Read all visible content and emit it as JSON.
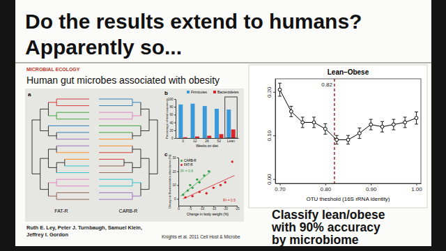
{
  "slide": {
    "title": [
      "Do the results extend to humans?",
      "Apparently so..."
    ],
    "figure": {
      "section": "MICROBIAL ECOLOGY",
      "heading": "Human gut microbes associated with obesity",
      "panels": [
        "a",
        "b",
        "c"
      ],
      "trees": [
        "FAT-R",
        "CARB-R"
      ],
      "authors": [
        "Ruth E. Ley, Peter J. Turnbaugh, Samuel Klein,",
        "Jeffrey I. Gordon"
      ]
    },
    "conclusion": [
      "Classify lean/obese",
      "with 90% accuracy",
      "by microbiome"
    ],
    "citation": "Knights et al. 2011 Cell Host & Microbe"
  },
  "chart_data": [
    {
      "type": "bar",
      "categories": [
        "0",
        "12",
        "26",
        "52",
        "Lean"
      ],
      "series": [
        {
          "name": "Firmicutes",
          "color": "#3a9ad9",
          "values": [
            86,
            88,
            82,
            75,
            73
          ]
        },
        {
          "name": "Bacteroidetes",
          "color": "#d7262b",
          "values": [
            2,
            4,
            6,
            10,
            22
          ]
        }
      ],
      "xlabel": "Weeks on diet",
      "ylabel": "Percentage of total sequences",
      "ylim": [
        0,
        100
      ],
      "yticks": [
        0,
        20,
        40,
        60,
        80,
        100
      ],
      "legend": "top"
    },
    {
      "type": "scatter",
      "series": [
        {
          "name": "CARB-R",
          "color": "#3aa04a",
          "marker": "circle",
          "x": [
            -2,
            -4,
            -5,
            -6,
            -8,
            -9,
            -11,
            -13
          ],
          "values": [
            3,
            6,
            10,
            8,
            14,
            12,
            17,
            20
          ],
          "fit": {
            "x": [
              -1,
              -14
            ],
            "values": [
              2,
              20
            ]
          },
          "annotation": "R² = 0.8"
        },
        {
          "name": "FAT-R",
          "color": "#d7262b",
          "marker": "circle",
          "x": [
            -3,
            -6,
            -9,
            -12,
            -15,
            -18,
            -20,
            -23
          ],
          "values": [
            1,
            2,
            5,
            4,
            8,
            10,
            12,
            27
          ],
          "fit": {
            "x": [
              -2,
              -24
            ],
            "values": [
              0,
              17
            ]
          },
          "annotation": "R² = 0.5"
        }
      ],
      "xlabel": "Change in body weight (%)",
      "ylabel": "Change in Bacteroidetes abundance (%)",
      "xlim": [
        0,
        -25
      ],
      "xticks": [
        0,
        -5,
        -10,
        -15,
        -20,
        -25
      ],
      "ylim": [
        -5,
        30
      ],
      "yticks": [
        0,
        10,
        20,
        30
      ],
      "legend": "top-left"
    },
    {
      "type": "line",
      "title": "Lean–Obese",
      "x": [
        0.7,
        0.725,
        0.75,
        0.775,
        0.8,
        0.825,
        0.85,
        0.875,
        0.9,
        0.925,
        0.95,
        0.975,
        1.0
      ],
      "values": [
        0.205,
        0.155,
        0.13,
        0.13,
        0.115,
        0.09,
        0.09,
        0.105,
        0.125,
        0.12,
        0.125,
        0.13,
        0.14
      ],
      "errors": [
        0.015,
        0.012,
        0.012,
        0.012,
        0.012,
        0.01,
        0.01,
        0.012,
        0.012,
        0.012,
        0.012,
        0.012,
        0.014
      ],
      "color": "#000000",
      "marker": "circle",
      "line_style": "solid",
      "xlabel": "OTU theshold (16S rRNA identity)",
      "xlim": [
        0.69,
        1.01
      ],
      "xticks": [
        {
          "value": 0.7,
          "label": "0.70"
        },
        {
          "value": 0.8,
          "label": "0.80"
        },
        {
          "value": 0.9,
          "label": "0.90"
        },
        {
          "value": 1.0,
          "label": "1.00"
        }
      ],
      "ylim": [
        -0.01,
        0.23
      ],
      "yticks": [
        {
          "value": 0,
          "label": "0.00"
        },
        {
          "value": 0.1,
          "label": "0.10"
        },
        {
          "value": 0.2,
          "label": "0.20"
        }
      ],
      "threshold": {
        "x": 0.82,
        "label": "0.82",
        "color": "#a01818",
        "line_style": "dashed"
      }
    }
  ]
}
